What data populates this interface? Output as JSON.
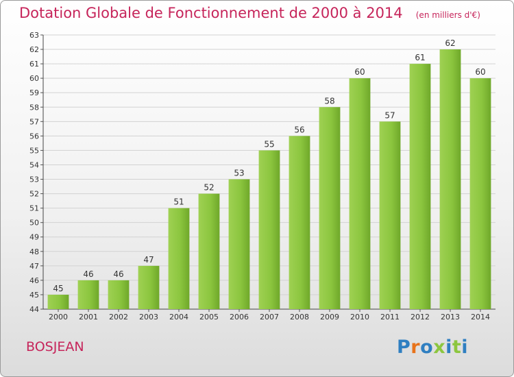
{
  "chart_data": {
    "type": "bar",
    "title": "Dotation Globale de Fonctionnement de 2000 à 2014",
    "unit_note": "(en milliers d'€)",
    "categories": [
      "2000",
      "2001",
      "2002",
      "2003",
      "2004",
      "2005",
      "2006",
      "2007",
      "2008",
      "2009",
      "2010",
      "2011",
      "2012",
      "2013",
      "2014"
    ],
    "values": [
      45,
      46,
      46,
      47,
      51,
      52,
      53,
      55,
      56,
      58,
      60,
      57,
      61,
      62,
      60
    ],
    "ylim": [
      44,
      63
    ],
    "yticks": [
      44,
      45,
      46,
      47,
      48,
      49,
      50,
      51,
      52,
      53,
      54,
      55,
      56,
      57,
      58,
      59,
      60,
      61,
      62,
      63
    ],
    "grid": true,
    "bar_color": "#8cc63f"
  },
  "footer": {
    "commune": "BOSJEAN",
    "logo_letters": [
      "P",
      "r",
      "o",
      "x",
      "i",
      "t",
      "i"
    ],
    "logo_colors": [
      "#2f7fc1",
      "#e8731a",
      "#2f7fc1",
      "#8cc63f",
      "#2f7fc1",
      "#8cc63f",
      "#2f7fc1"
    ]
  }
}
